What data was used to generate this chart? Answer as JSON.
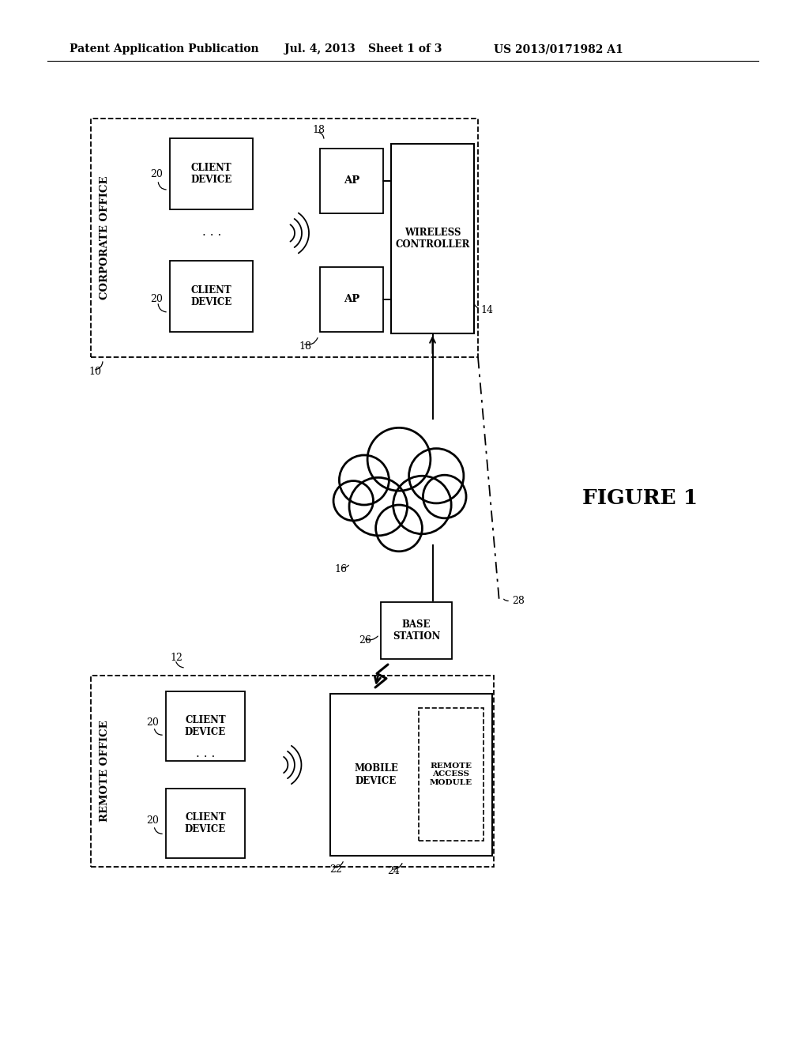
{
  "bg": "#ffffff",
  "header_left": "Patent Application Publication",
  "header_mid1": "Jul. 4, 2013",
  "header_mid2": "Sheet 1 of 3",
  "header_right": "US 2013/0171982 A1",
  "fig_label": "FIGURE 1"
}
